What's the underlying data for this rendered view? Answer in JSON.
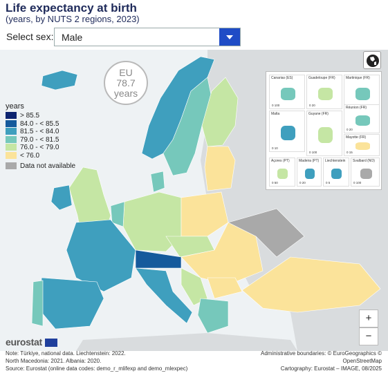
{
  "header": {
    "title": "Life expectancy at birth",
    "subtitle": "(years, by NUTS 2 regions, 2023)"
  },
  "filter": {
    "label": "Select sex:",
    "value": "Male"
  },
  "badge": {
    "region": "EU",
    "value": "78.7",
    "unit": "years"
  },
  "legend": {
    "title": "years",
    "classes": [
      {
        "label": "> 85.5",
        "color": "#0d2470"
      },
      {
        "label": "84.0 - < 85.5",
        "color": "#155a9c"
      },
      {
        "label": "81.5 - < 84.0",
        "color": "#3f9fbe"
      },
      {
        "label": "79.0 - < 81.5",
        "color": "#76c8bb"
      },
      {
        "label": "76.0 - < 79.0",
        "color": "#c5e6a4"
      },
      {
        "label": "< 76.0",
        "color": "#fbe39a"
      }
    ],
    "na": {
      "label": "Data not available",
      "color": "#a9a9a9"
    }
  },
  "insets": [
    {
      "label": "Canarias (ES)",
      "scale": "0   100"
    },
    {
      "label": "Guadeloupe (FR)",
      "scale": "0   20"
    },
    {
      "label": "Martinique (FR)",
      "scale": "0   20"
    },
    {
      "label": "Réunion (FR)",
      "scale": "0   20"
    },
    {
      "label": "Malta",
      "scale": "0   10"
    },
    {
      "label": "Guyane (FR)",
      "scale": "0   100"
    },
    {
      "label": "Mayotte (FR)",
      "scale": "0   15"
    },
    {
      "label": "Açores (PT)",
      "scale": "0   50"
    },
    {
      "label": "Madeira (PT)",
      "scale": "0   20"
    },
    {
      "label": "Liechtenstein",
      "scale": "0   5"
    },
    {
      "label": "Svalbard (NO)",
      "scale": "0   100"
    }
  ],
  "zoom": {
    "in": "+",
    "out": "−"
  },
  "footer": {
    "logo": "eurostat",
    "note1": "Note: Türkiye, national data. Liechtenstein: 2022.",
    "note2": "North Macedonia: 2021. Albania: 2020.",
    "source": "Source: Eurostat (online data codes: demo_r_mlifexp and demo_mlexpec)",
    "credit1": "Administrative boundaries: © EuroGeographics © OpenStreetMap",
    "credit2": "Cartography: Eurostat – IMAGE, 08/2025"
  }
}
